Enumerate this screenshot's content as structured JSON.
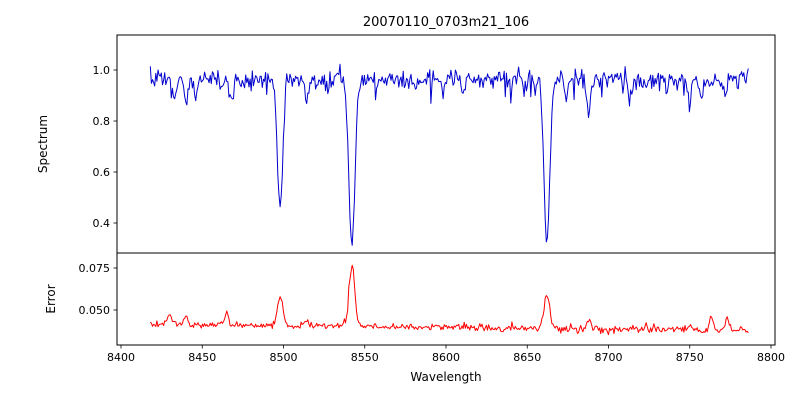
{
  "chart_data": {
    "type": "line",
    "title": "20070110_0703m21_106",
    "xlabel": "Wavelength",
    "x_axis": {
      "min": 8400,
      "max": 8800,
      "ticks": [
        8400,
        8450,
        8500,
        8550,
        8600,
        8650,
        8700,
        8750,
        8800
      ]
    },
    "x_range": [
      8418,
      8786
    ],
    "n_points": 540,
    "seed": 7,
    "grid": false,
    "legend": "none",
    "panels": [
      {
        "name": "spectrum",
        "ylabel": "Spectrum",
        "color": "#0000cd",
        "ylim": [
          0.2824,
          1.1373
        ],
        "ytick_values": [
          0.4,
          0.6,
          0.8,
          1.0
        ],
        "ytick_labels": [
          "0.4",
          "0.6",
          "0.8",
          "1.0"
        ],
        "continuum": 0.965,
        "noise_sigma": 0.018,
        "spike_prob": 0.06,
        "spike_max": 0.06,
        "absorption_lines": [
          {
            "center": 8433.0,
            "depth": 0.07,
            "sigma": 1.2
          },
          {
            "center": 8440.0,
            "depth": 0.1,
            "sigma": 1.0
          },
          {
            "center": 8446.0,
            "depth": 0.06,
            "sigma": 1.0
          },
          {
            "center": 8468.0,
            "depth": 0.08,
            "sigma": 1.1
          },
          {
            "center": 8498.0,
            "depth": 0.5,
            "sigma": 1.6
          },
          {
            "center": 8514.0,
            "depth": 0.07,
            "sigma": 1.0
          },
          {
            "center": 8527.0,
            "depth": 0.05,
            "sigma": 1.0
          },
          {
            "center": 8542.1,
            "depth": 0.64,
            "sigma": 1.9
          },
          {
            "center": 8582.0,
            "depth": 0.05,
            "sigma": 1.0
          },
          {
            "center": 8598.0,
            "depth": 0.06,
            "sigma": 1.0
          },
          {
            "center": 8611.0,
            "depth": 0.05,
            "sigma": 1.0
          },
          {
            "center": 8648.0,
            "depth": 0.05,
            "sigma": 1.0
          },
          {
            "center": 8662.1,
            "depth": 0.63,
            "sigma": 1.8
          },
          {
            "center": 8674.0,
            "depth": 0.07,
            "sigma": 1.0
          },
          {
            "center": 8688.0,
            "depth": 0.14,
            "sigma": 1.2
          },
          {
            "center": 8713.0,
            "depth": 0.05,
            "sigma": 1.0
          },
          {
            "center": 8736.0,
            "depth": 0.05,
            "sigma": 1.0
          },
          {
            "center": 8750.0,
            "depth": 0.09,
            "sigma": 1.1
          },
          {
            "center": 8757.0,
            "depth": 0.06,
            "sigma": 1.0
          },
          {
            "center": 8772.0,
            "depth": 0.08,
            "sigma": 1.0
          }
        ]
      },
      {
        "name": "error",
        "ylabel": "Error",
        "color": "#ff0000",
        "ylim": [
          0.02917,
          0.08393
        ],
        "ytick_values": [
          0.05,
          0.075
        ],
        "ytick_labels": [
          "0.050",
          "0.075"
        ],
        "baseline_start": 0.0415,
        "baseline_end": 0.0378,
        "noise_sigma": 0.0011,
        "spike_prob": 0.05,
        "spike_max": 0.003,
        "peaks": [
          {
            "center": 8430.0,
            "height": 0.006,
            "sigma": 1.4
          },
          {
            "center": 8440.0,
            "height": 0.004,
            "sigma": 1.2
          },
          {
            "center": 8465.0,
            "height": 0.0075,
            "sigma": 1.3
          },
          {
            "center": 8498.0,
            "height": 0.017,
            "sigma": 1.6
          },
          {
            "center": 8514.0,
            "height": 0.003,
            "sigma": 1.0
          },
          {
            "center": 8542.1,
            "height": 0.037,
            "sigma": 1.7
          },
          {
            "center": 8662.1,
            "height": 0.021,
            "sigma": 1.7
          },
          {
            "center": 8688.0,
            "height": 0.005,
            "sigma": 1.2
          },
          {
            "center": 8750.0,
            "height": 0.004,
            "sigma": 1.2
          },
          {
            "center": 8763.0,
            "height": 0.0065,
            "sigma": 1.1
          },
          {
            "center": 8773.0,
            "height": 0.0075,
            "sigma": 1.1
          }
        ]
      }
    ]
  }
}
